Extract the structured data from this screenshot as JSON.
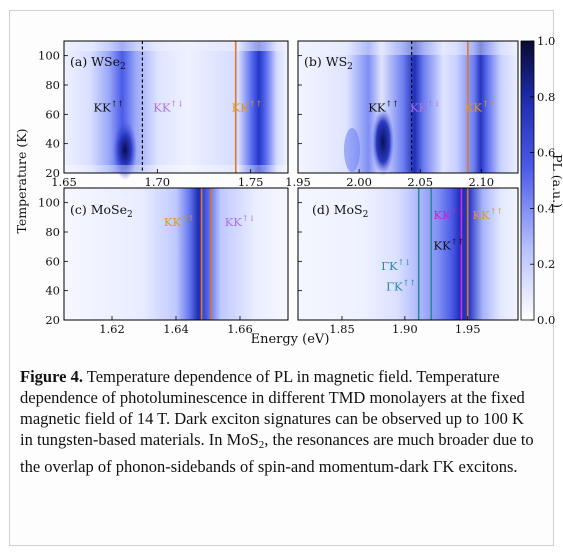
{
  "chart_data": [
    {
      "type": "heatmap",
      "panel_label": "(a) WSe",
      "panel_label_sub": "2",
      "xlim": [
        1.65,
        1.77
      ],
      "xticks": [
        "1.65",
        "1.70",
        "1.75"
      ],
      "ylim": [
        20,
        110
      ],
      "yticks": [
        "20",
        "40",
        "60",
        "80",
        "100"
      ],
      "dashed_lines": [
        1.692
      ],
      "solid_lines": [
        1.742
      ],
      "annotations": [
        {
          "text": "KK",
          "sup": "↑↑",
          "color": "#111111",
          "x": 1.674,
          "y": 62
        },
        {
          "text": "KK",
          "sup": "↑↓",
          "color": "#b070e0",
          "x": 1.706,
          "y": 62
        },
        {
          "text": "KK",
          "sup": "↑↑",
          "color": "#e8951a",
          "x": 1.748,
          "y": 62
        }
      ]
    },
    {
      "type": "heatmap",
      "panel_label": "(b) WS",
      "panel_label_sub": "2",
      "xlim": [
        1.95,
        2.13
      ],
      "xticks": [
        "1.95",
        "2.00",
        "2.05",
        "2.10"
      ],
      "ylim": [
        20,
        110
      ],
      "dashed_lines": [
        2.043
      ],
      "solid_lines": [
        2.089
      ],
      "annotations": [
        {
          "text": "KK",
          "sup": "↑↑",
          "color": "#111111",
          "x": 2.02,
          "y": 62
        },
        {
          "text": "KK",
          "sup": "↑↓",
          "color": "#b070e0",
          "x": 2.054,
          "y": 62
        },
        {
          "text": "KK",
          "sup": "↑↑",
          "color": "#e8951a",
          "x": 2.099,
          "y": 62
        }
      ]
    },
    {
      "type": "heatmap",
      "panel_label": "(c) MoSe",
      "panel_label_sub": "2",
      "xlim": [
        1.605,
        1.675
      ],
      "xticks": [
        "1.62",
        "1.64",
        "1.66"
      ],
      "ylim": [
        20,
        110
      ],
      "yticks": [
        "20",
        "40",
        "60",
        "80",
        "100"
      ],
      "solid_lines": [
        1.648,
        1.651
      ],
      "annotations": [
        {
          "text": "KK",
          "sup": "↑↑",
          "color": "#e8951a",
          "x": 1.641,
          "y": 84
        },
        {
          "text": "KK",
          "sup": "↑↓",
          "color": "#b070e0",
          "x": 1.66,
          "y": 84
        }
      ]
    },
    {
      "type": "heatmap",
      "panel_label": "(d) MoS",
      "panel_label_sub": "2",
      "xlim": [
        1.815,
        1.99
      ],
      "xticks": [
        "1.85",
        "1.90",
        "1.95"
      ],
      "ylim": [
        20,
        110
      ],
      "solid_lines_teal": [
        1.911,
        1.921
      ],
      "solid_lines": [
        1.945,
        1.95
      ],
      "annotations": [
        {
          "text": "KK",
          "sup": "↑↓",
          "color": "#d020d0",
          "x": 1.935,
          "y": 89
        },
        {
          "text": "KK",
          "sup": "↑↑",
          "color": "#e8951a",
          "x": 1.966,
          "y": 89
        },
        {
          "text": "KK",
          "sup": "↑↑",
          "color": "#111111",
          "x": 1.935,
          "y": 68
        },
        {
          "text": "ΓK",
          "sup": "↑↓",
          "color": "#2a8a9a",
          "x": 1.893,
          "y": 54
        },
        {
          "text": "ΓK",
          "sup": "↑↑",
          "color": "#2a8a9a",
          "x": 1.897,
          "y": 40
        }
      ]
    }
  ],
  "axes": {
    "ylabel": "Temperature (K)",
    "xlabel": "Energy (eV)",
    "colorbar_label": "PL (a.u.)",
    "colorbar_ticks": [
      "0.0",
      "0.2",
      "0.4",
      "0.6",
      "0.8",
      "1.0"
    ]
  },
  "caption": {
    "label": "Figure 4.",
    "title": "Temperature dependence of PL in magnetic field.",
    "body_1": "Temperature dependence of photoluminescence in different TMD monolayers at the fixed magnetic field of 14 T. Dark exciton signatures can be observed up to 100 K in tungsten-based materials. In MoS",
    "body_sub": "2",
    "body_2": ", the resonances are much broader due to the overlap of phonon-sidebands of spin-and momentum-dark ΓK excitons."
  }
}
